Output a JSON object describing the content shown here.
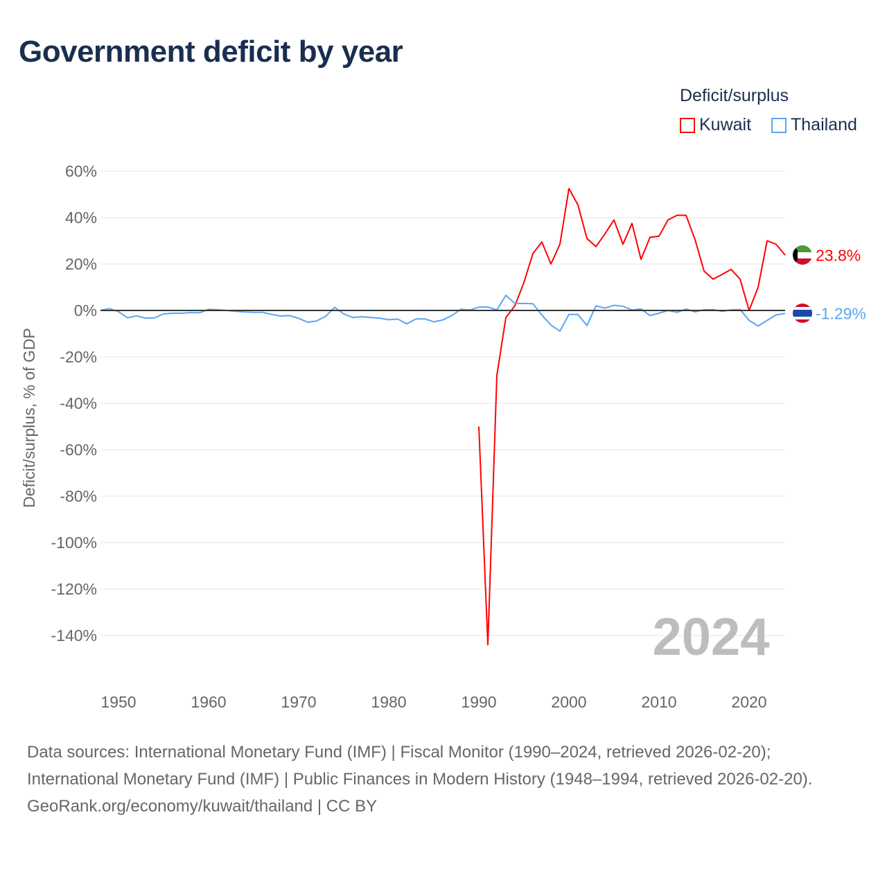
{
  "title": "Government deficit by year",
  "legend": {
    "title": "Deficit/surplus",
    "items": [
      "Kuwait",
      "Thailand"
    ]
  },
  "year_watermark": "2024",
  "sources": {
    "line1": "Data sources: International Monetary Fund (IMF) | Fiscal Monitor (1990–2024, retrieved 2026-02-20);",
    "line2": "International Monetary Fund (IMF) | Public Finances in Modern History (1948–1994, retrieved 2026-02-20).",
    "line3": "GeoRank.org/economy/kuwait/thailand | CC BY"
  },
  "chart_data": {
    "type": "line",
    "title": "Government deficit by year",
    "xlabel": "",
    "ylabel": "Deficit/surplus, % of GDP",
    "xlim": [
      1948,
      2024
    ],
    "ylim": [
      -160,
      60
    ],
    "xticks": [
      1950,
      1960,
      1970,
      1980,
      1990,
      2000,
      2010,
      2020
    ],
    "yticks": [
      60,
      40,
      20,
      0,
      -20,
      -40,
      -60,
      -80,
      -100,
      -120,
      -140
    ],
    "ytick_labels": [
      "60%",
      "40%",
      "20%",
      "0%",
      "-20%",
      "-40%",
      "-60%",
      "-80%",
      "-100%",
      "-120%",
      "-140%"
    ],
    "grid": true,
    "legend_position": "top-right",
    "series": [
      {
        "name": "Kuwait",
        "color": "#ff0000",
        "end_label": "23.8%",
        "start_year": 1990,
        "values": [
          -50,
          -144,
          -28,
          -3,
          2,
          12,
          24.5,
          29.5,
          20,
          28.5,
          52.5,
          45.5,
          31,
          27.5,
          33,
          39,
          28.5,
          37.5,
          22,
          31.5,
          32,
          39,
          41,
          41,
          30.5,
          17,
          13.5,
          15.5,
          17.7,
          13.5,
          0,
          10,
          30,
          28.5,
          23.8
        ]
      },
      {
        "name": "Thailand",
        "color": "#5aa5f0",
        "end_label": "-1.29%",
        "start_year": 1948,
        "values": [
          0,
          0.8,
          -0.5,
          -3.2,
          -2.3,
          -3.3,
          -3.2,
          -1.5,
          -1.2,
          -1.2,
          -0.9,
          -1,
          0.5,
          0.3,
          0,
          -0.4,
          -0.7,
          -0.8,
          -0.8,
          -1.7,
          -2.4,
          -2.2,
          -3.4,
          -5.1,
          -4.5,
          -2.5,
          1.3,
          -1.5,
          -3,
          -2.7,
          -3,
          -3.3,
          -4,
          -3.7,
          -5.8,
          -3.7,
          -3.6,
          -4.9,
          -4.1,
          -2.2,
          0.5,
          0.2,
          1.4,
          1.5,
          0.2,
          6.5,
          3,
          3,
          2.9,
          -2,
          -6.3,
          -8.9,
          -1.7,
          -1.7,
          -6.5,
          2,
          1,
          2.2,
          1.8,
          0.2,
          0.7,
          -2.2,
          -1.2,
          0,
          -0.8,
          0.6,
          -0.6,
          0.3,
          0.4,
          -0.4,
          0.2,
          0.4,
          -4.3,
          -6.7,
          -4.3,
          -1.9,
          -1.29
        ]
      }
    ]
  }
}
